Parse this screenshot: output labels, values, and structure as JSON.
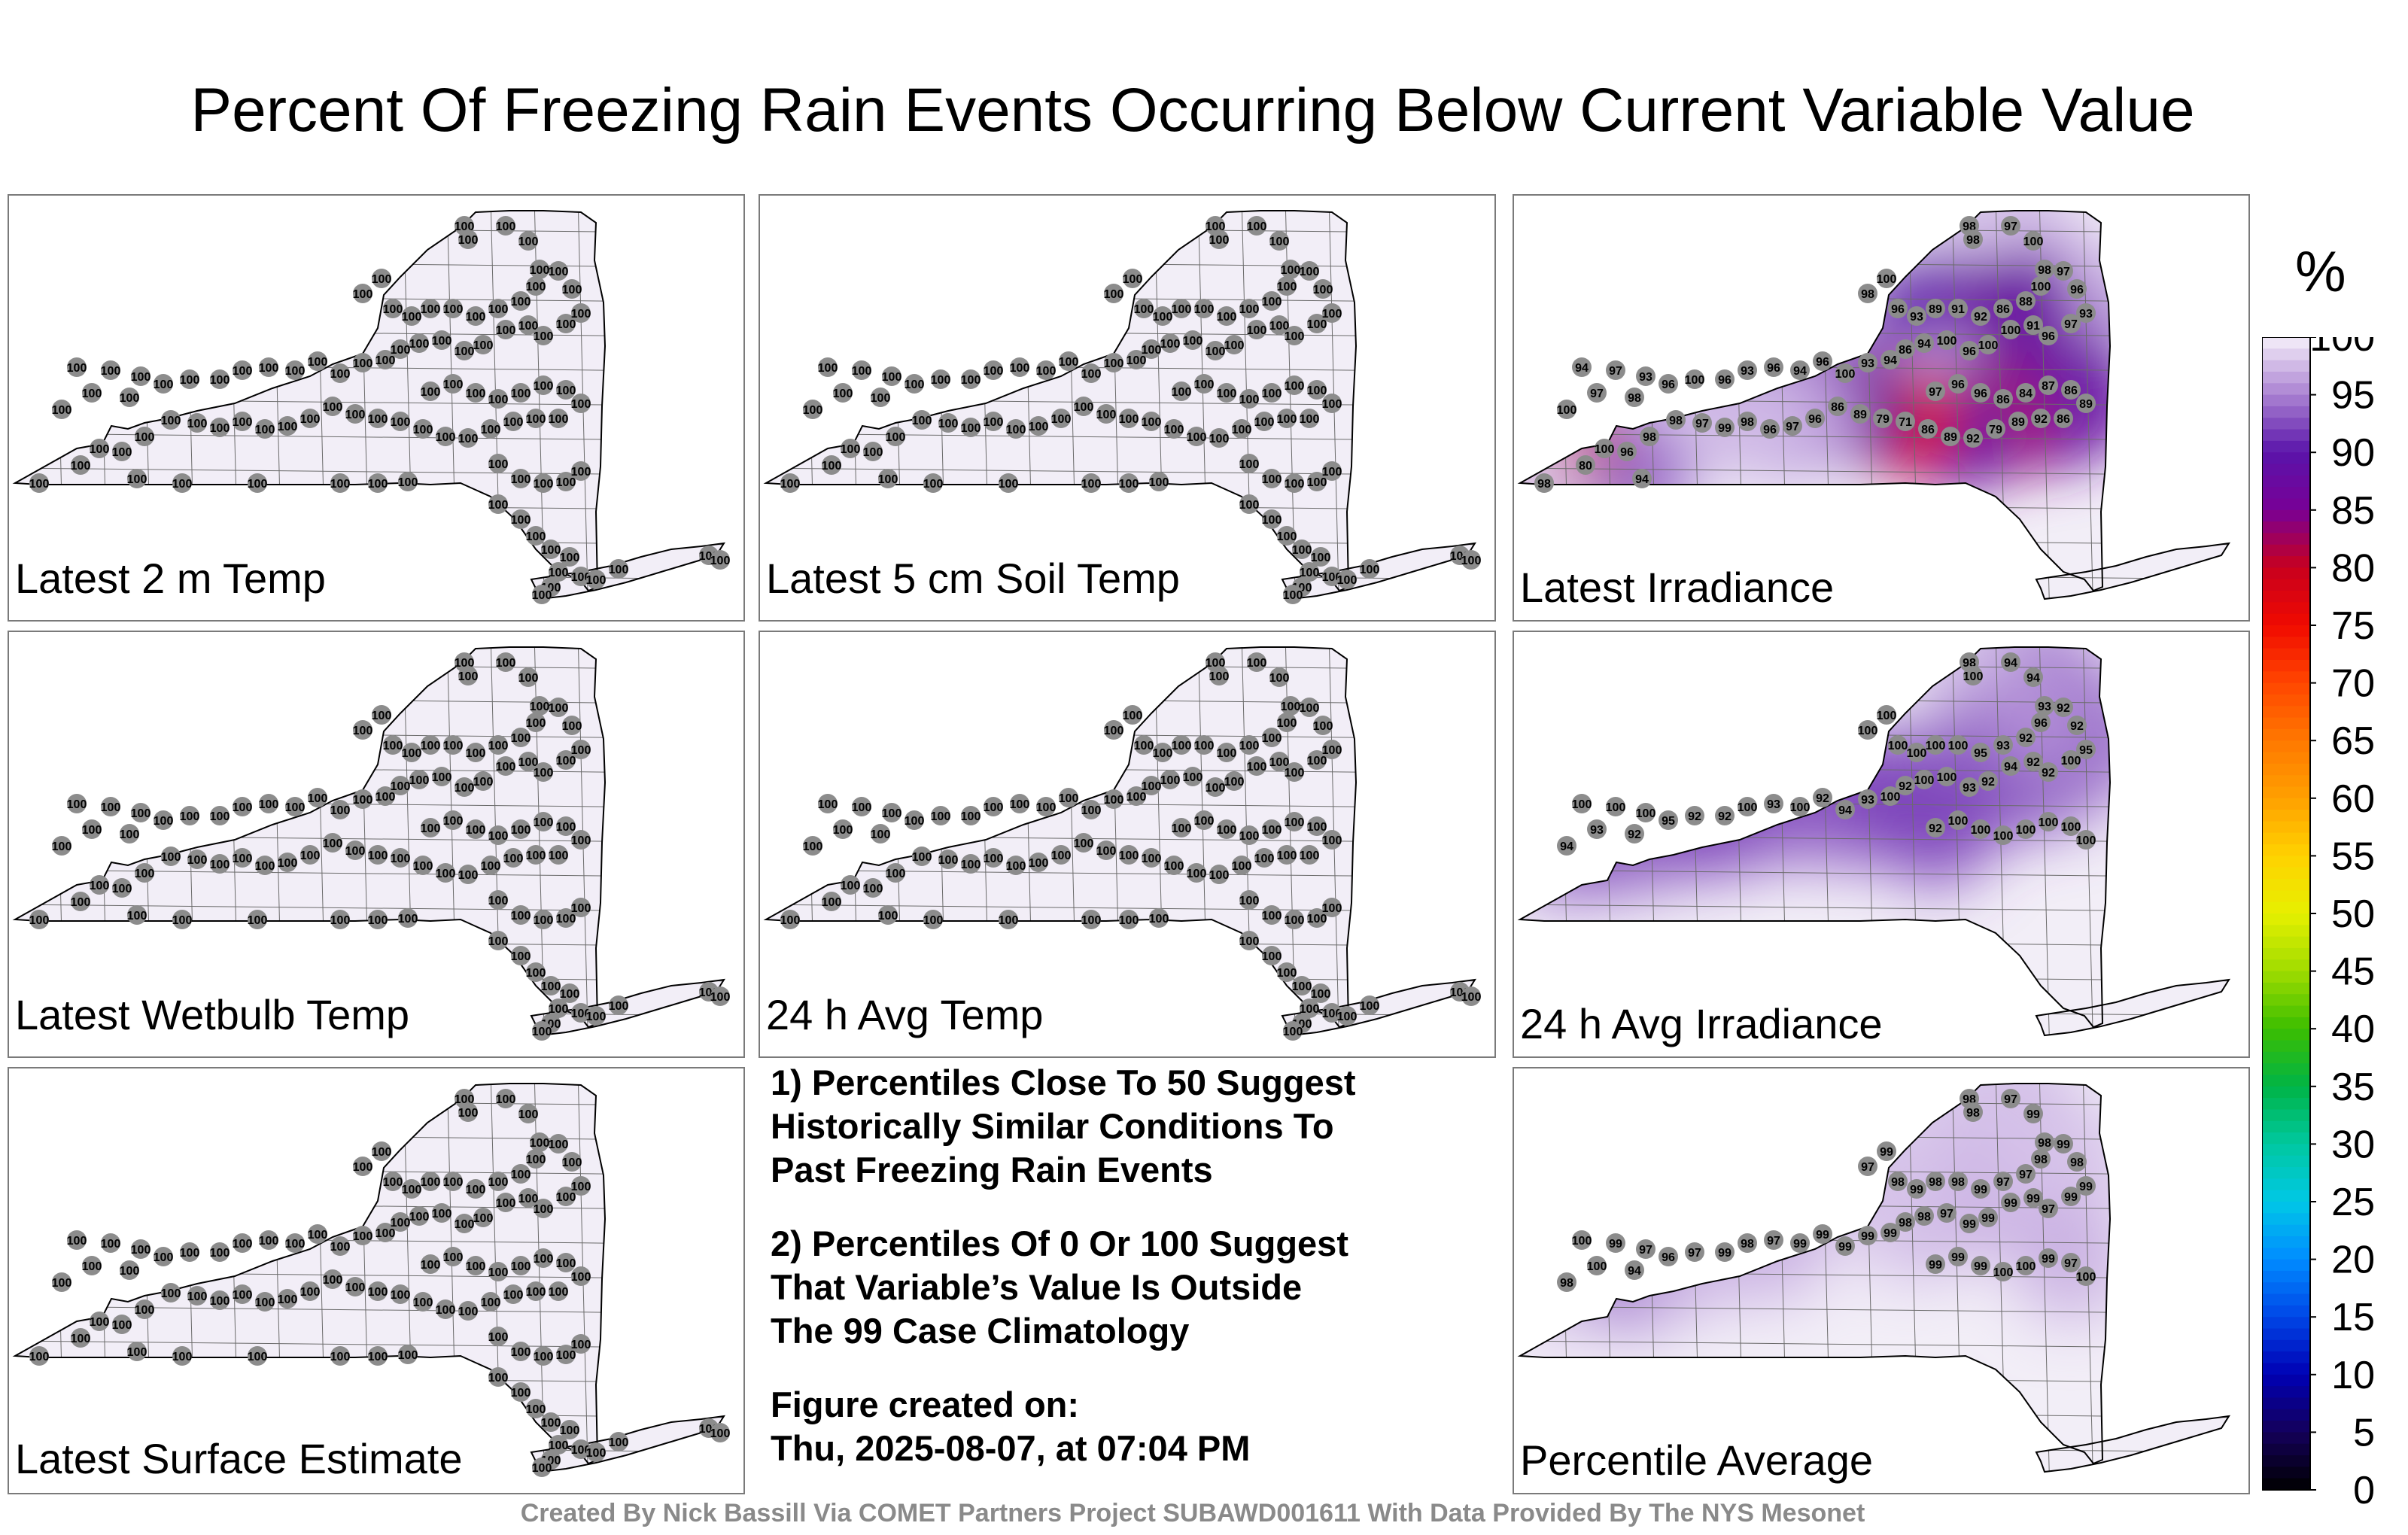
{
  "title": "Percent Of Freezing Rain Events Occurring Below Current Variable Value",
  "panels": [
    {
      "label": "Latest 2 m Temp",
      "mode": "uniform"
    },
    {
      "label": "Latest 5 cm Soil Temp",
      "mode": "uniform"
    },
    {
      "label": "Latest Irradiance",
      "mode": "irradiance",
      "values": [
        94,
        97,
        93,
        97,
        100,
        98,
        96,
        100,
        96,
        93,
        96,
        94,
        96,
        100,
        93,
        94,
        86,
        94,
        100,
        96,
        100,
        100,
        91,
        96,
        97,
        93,
        96,
        97,
        98,
        100,
        97,
        98,
        98,
        98,
        100,
        96,
        93,
        89,
        91,
        92,
        86,
        88,
        100,
        97,
        96,
        96,
        86,
        84,
        87,
        86,
        89,
        86,
        92,
        89,
        79,
        92,
        89,
        86,
        71,
        79,
        89,
        86,
        96,
        97,
        96,
        98,
        99,
        97,
        98,
        98,
        96,
        100,
        80,
        98,
        94
      ]
    },
    {
      "label": "Latest Wetbulb Temp",
      "mode": "uniform"
    },
    {
      "label": "24 h Avg Temp",
      "mode": "uniform"
    },
    {
      "label": "24 h Avg Irradiance",
      "mode": "avgirr",
      "values": [
        100,
        100,
        100,
        93,
        94,
        92,
        95,
        92,
        92,
        100,
        93,
        100,
        92,
        94,
        93,
        100,
        92,
        100,
        100,
        93,
        92,
        94,
        92,
        92,
        100,
        95,
        92,
        92,
        93,
        94,
        94,
        98,
        100,
        100,
        100,
        100,
        100,
        100,
        100,
        95,
        93,
        92,
        96,
        92,
        100,
        100,
        100,
        100,
        100,
        100,
        100
      ]
    },
    {
      "label": "Percentile Average",
      "mode": "average",
      "values": [
        100,
        99,
        97,
        100,
        98,
        94,
        96,
        97,
        99,
        98,
        97,
        99,
        99,
        99,
        99,
        99,
        98,
        98,
        97,
        99,
        99,
        99,
        99,
        97,
        99,
        99,
        98,
        99,
        98,
        99,
        97,
        98,
        98,
        97,
        99,
        98,
        99,
        98,
        98,
        99,
        97,
        97,
        98,
        99,
        99,
        99,
        100,
        100,
        99,
        97,
        100
      ]
    }
  ],
  "notes": {
    "n1_l1": "1) Percentiles Close To 50 Suggest",
    "n1_l2": "Historically Similar Conditions To",
    "n1_l3": "Past Freezing Rain Events",
    "n2_l1": "2) Percentiles Of 0 Or 100 Suggest",
    "n2_l2": "That Variable’s Value Is Outside",
    "n2_l3": "The 99 Case Climatology",
    "n3_l1": "Figure created on:",
    "n3_l2": "Thu, 2025-08-07, at 07:04 PM"
  },
  "colorbar": {
    "unit": "%",
    "ticks": [
      "100",
      "95",
      "90",
      "85",
      "80",
      "75",
      "70",
      "65",
      "60",
      "55",
      "50",
      "45",
      "40",
      "35",
      "30",
      "25",
      "20",
      "15",
      "10",
      "5",
      "0"
    ],
    "range": [
      0,
      100
    ]
  },
  "default_value": "100",
  "credit": "Created By Nick Bassill Via COMET Partners Project SUBAWD001611 With Data Provided By The NYS Mesonet",
  "colors": {
    "base_fill": "#f2eef7",
    "marker": "#8c8c8c",
    "outline": "#000000"
  }
}
